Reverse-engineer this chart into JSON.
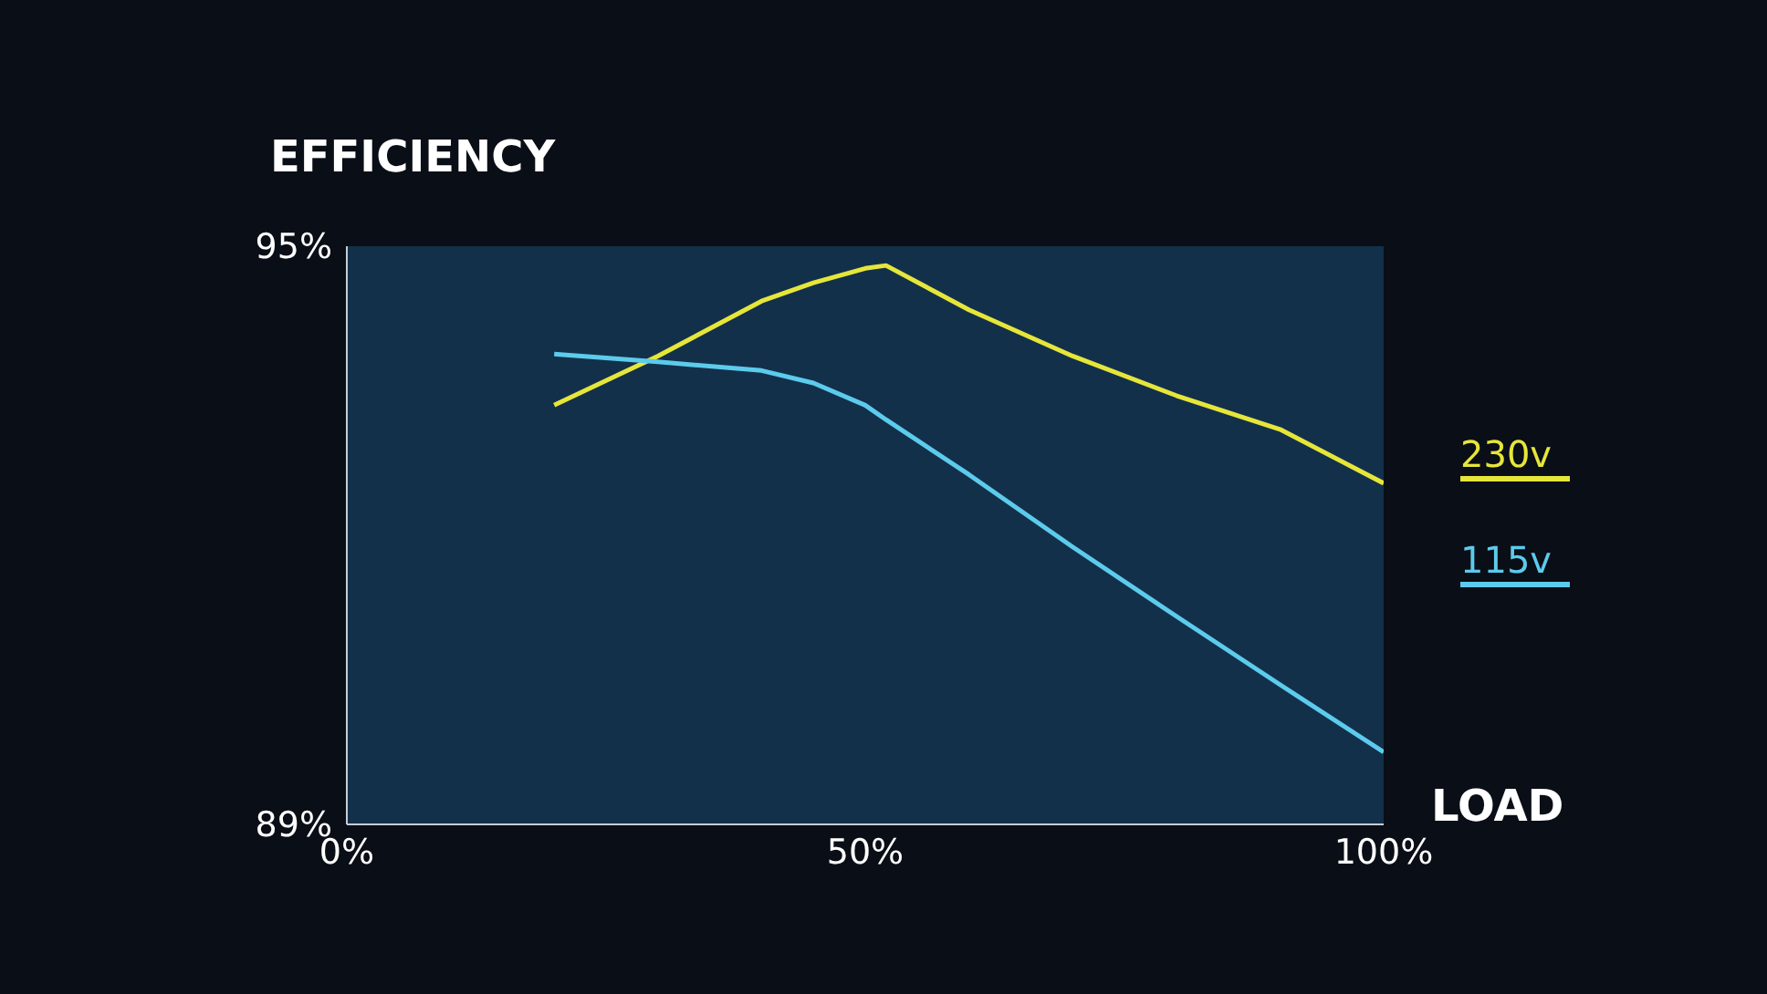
{
  "chart_data": {
    "type": "line",
    "ylabel": "EFFICIENCY",
    "xlabel": "LOAD",
    "x": [
      20,
      30,
      40,
      45,
      50,
      52,
      60,
      70,
      80,
      90,
      100
    ],
    "series": [
      {
        "name": "230v",
        "color": "#e6e63a",
        "values": [
          93.35,
          93.86,
          94.43,
          94.62,
          94.77,
          94.8,
          94.34,
          93.86,
          93.45,
          93.1,
          92.54
        ]
      },
      {
        "name": "115v",
        "color": "#5ccbec",
        "values": [
          93.88,
          93.8,
          93.71,
          93.58,
          93.35,
          93.2,
          92.63,
          91.88,
          91.16,
          90.45,
          89.75
        ]
      }
    ],
    "xlim": [
      0,
      100
    ],
    "xticks": [
      {
        "value": 0,
        "label": "0%"
      },
      {
        "value": 50,
        "label": "50%"
      },
      {
        "value": 100,
        "label": "100%"
      }
    ],
    "ylim": [
      89,
      95
    ],
    "yticks": [
      {
        "value": 89,
        "label": "89%"
      },
      {
        "value": 95,
        "label": "95%"
      }
    ],
    "legend": "right",
    "marker": "none",
    "line_style": "solid"
  }
}
